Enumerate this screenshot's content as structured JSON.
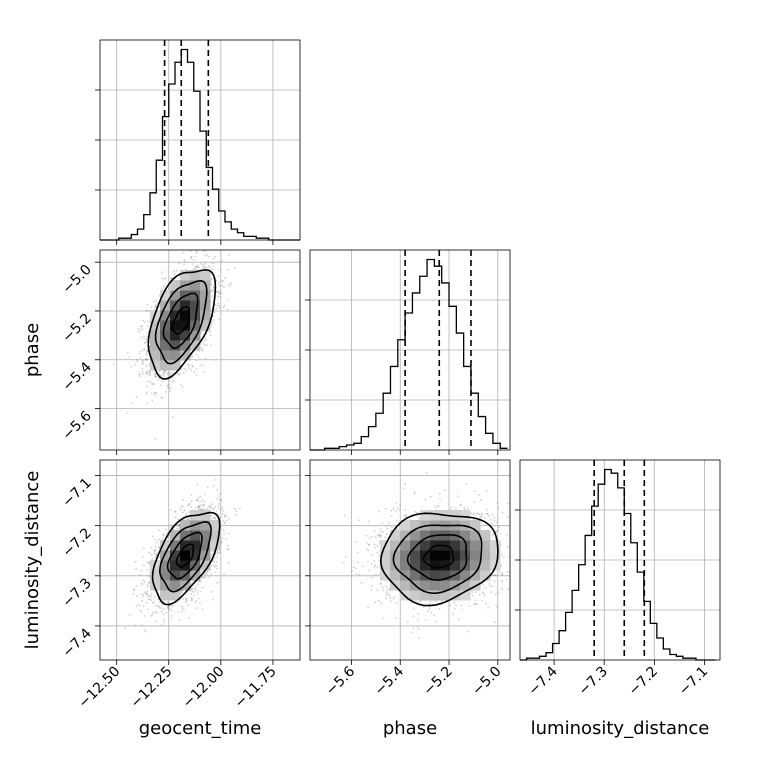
{
  "chart_data": {
    "type": "corner",
    "parameters": [
      "geocent_time",
      "phase",
      "luminosity_distance"
    ],
    "labels": {
      "geocent_time": "geocent_time",
      "phase": "phase",
      "luminosity_distance": "luminosity_distance"
    },
    "ranges": {
      "geocent_time": [
        -12.58,
        -11.62
      ],
      "phase": [
        -5.77,
        -4.95
      ],
      "luminosity_distance": [
        -7.468,
        -7.069
      ]
    },
    "ticks": {
      "geocent_time": [
        -12.5,
        -12.25,
        -12.0,
        -11.75
      ],
      "phase": [
        -5.6,
        -5.4,
        -5.2,
        -5.0
      ],
      "luminosity_distance": [
        -7.4,
        -7.3,
        -7.2,
        -7.1
      ]
    },
    "tick_labels": {
      "geocent_time": [
        "−12.50",
        "−12.25",
        "−12.00",
        "−11.75"
      ],
      "phase": [
        "−5.6",
        "−5.4",
        "−5.2",
        "−5.0"
      ],
      "luminosity_distance": [
        "−7.4",
        "−7.3",
        "−7.2",
        "−7.1"
      ]
    },
    "grid": true,
    "quantiles": {
      "geocent_time": [
        -12.27,
        -12.19,
        -12.06
      ],
      "phase": [
        -5.38,
        -5.24,
        -5.11
      ],
      "luminosity_distance": [
        -7.32,
        -7.26,
        -7.22
      ]
    },
    "histograms": [
      {
        "name": "geocent_time",
        "bin_edges": [
          -12.58,
          -12.55,
          -12.52,
          -12.49,
          -12.46,
          -12.43,
          -12.4,
          -12.37,
          -12.34,
          -12.31,
          -12.28,
          -12.25,
          -12.22,
          -12.19,
          -12.16,
          -12.13,
          -12.1,
          -12.07,
          -12.04,
          -12.01,
          -11.98,
          -11.95,
          -11.92,
          -11.89,
          -11.86,
          -11.83,
          -11.8,
          -11.77,
          -11.74,
          -11.71,
          -11.68,
          -11.65,
          -11.62
        ],
        "counts": [
          0,
          0,
          0,
          1,
          1,
          3,
          6,
          14,
          26,
          44,
          68,
          86,
          98,
          105,
          98,
          82,
          60,
          40,
          28,
          16,
          10,
          6,
          4,
          2,
          2,
          1,
          1,
          0,
          0,
          0,
          0,
          0
        ]
      },
      {
        "name": "phase",
        "bin_edges": [
          -5.77,
          -5.74,
          -5.71,
          -5.68,
          -5.65,
          -5.62,
          -5.59,
          -5.56,
          -5.53,
          -5.5,
          -5.47,
          -5.44,
          -5.41,
          -5.38,
          -5.35,
          -5.32,
          -5.29,
          -5.26,
          -5.23,
          -5.2,
          -5.17,
          -5.14,
          -5.11,
          -5.08,
          -5.05,
          -5.02,
          -4.99,
          -4.96
        ],
        "counts": [
          0,
          0,
          1,
          1,
          2,
          3,
          4,
          8,
          14,
          22,
          34,
          50,
          66,
          82,
          94,
          104,
          114,
          110,
          100,
          86,
          70,
          50,
          34,
          20,
          10,
          4,
          1
        ]
      },
      {
        "name": "luminosity_distance",
        "bin_edges": [
          -7.468,
          -7.455,
          -7.442,
          -7.429,
          -7.416,
          -7.403,
          -7.39,
          -7.377,
          -7.364,
          -7.351,
          -7.338,
          -7.325,
          -7.312,
          -7.299,
          -7.286,
          -7.273,
          -7.26,
          -7.247,
          -7.234,
          -7.221,
          -7.208,
          -7.195,
          -7.182,
          -7.169,
          -7.156,
          -7.143,
          -7.13,
          -7.117,
          -7.104,
          -7.091,
          -7.078
        ],
        "counts": [
          0,
          1,
          1,
          2,
          4,
          9,
          16,
          26,
          38,
          52,
          68,
          84,
          96,
          104,
          102,
          94,
          80,
          64,
          48,
          32,
          20,
          12,
          6,
          3,
          2,
          1,
          1,
          0,
          0,
          0
        ]
      }
    ],
    "pairs": [
      {
        "x": "geocent_time",
        "y": "phase",
        "center": [
          -12.19,
          -5.24
        ],
        "sd": [
          0.08,
          0.11
        ],
        "rho": 0.5
      },
      {
        "x": "geocent_time",
        "y": "luminosity_distance",
        "center": [
          -12.17,
          -7.26
        ],
        "sd": [
          0.08,
          0.045
        ],
        "rho": 0.55
      },
      {
        "x": "phase",
        "y": "luminosity_distance",
        "center": [
          -5.24,
          -7.262
        ],
        "sd": [
          0.12,
          0.045
        ],
        "rho": 0.1
      }
    ],
    "contour_levels_sigma": [
      0.5,
      1.0,
      1.5,
      2.0
    ]
  }
}
